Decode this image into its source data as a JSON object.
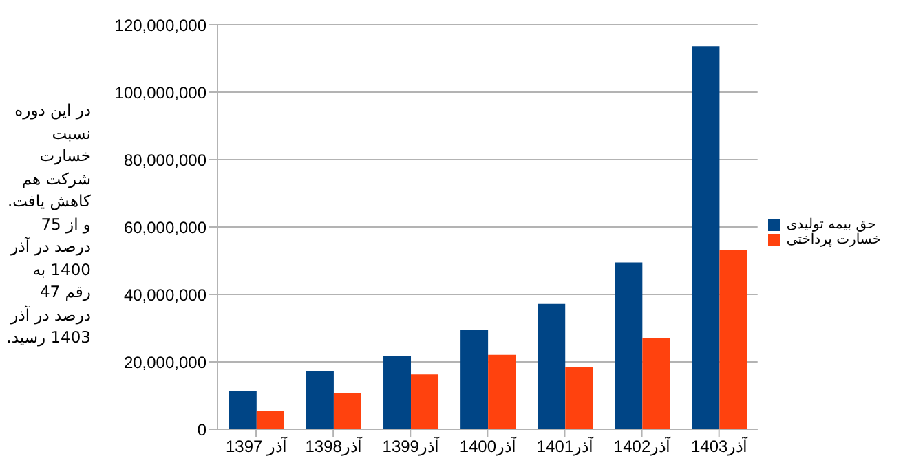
{
  "chart_data": {
    "type": "bar",
    "categories": [
      "آذر 1397",
      "آذر1398",
      "آذر1399",
      "آذر1400",
      "آذر1401",
      "آذر1402",
      "آذر1403"
    ],
    "series": [
      {
        "name": "حق بیمه تولیدی",
        "color": "#004586",
        "values": [
          11400000,
          17200000,
          21700000,
          29400000,
          37200000,
          49500000,
          113600000
        ]
      },
      {
        "name": "خسارت پرداختی",
        "color": "#ff420e",
        "values": [
          5300000,
          10600000,
          16300000,
          22100000,
          18400000,
          27000000,
          53100000
        ]
      }
    ],
    "ylim": [
      0,
      120000000
    ],
    "yticks": [
      0,
      {
        "value": 20000000,
        "label": "20,000,000"
      },
      {
        "value": 40000000,
        "label": "40,000,000"
      },
      {
        "value": 60000000,
        "label": "60,000,000"
      },
      {
        "value": 80000000,
        "label": "80,000,000"
      },
      {
        "value": 100000000,
        "label": "100,000,000"
      },
      {
        "value": 120000000,
        "label": "120,000,000"
      }
    ],
    "grid": "y",
    "legend": "right",
    "annotations": [
      "در این دوره نسبت خسارت شرکت هم کاهش یافت. و از 75 درصد در آذر 1400 به رقم 47 درصد در آذر 1403 رسید."
    ]
  }
}
